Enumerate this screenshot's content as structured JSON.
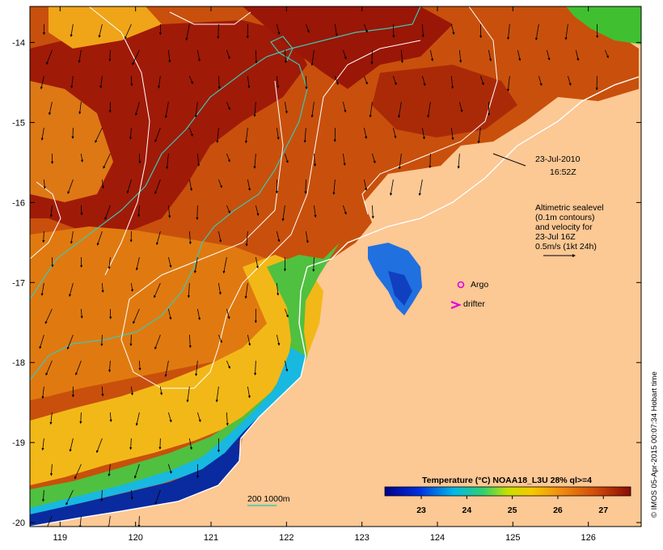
{
  "map": {
    "date": "23-Jul-2010",
    "time": "16:52Z",
    "altimetry_lines": [
      "Altimetric sealevel",
      "(0.1m contours)",
      "and velocity for",
      "23-Jul 16Z",
      "0.5m/s (1kt 24h)"
    ],
    "legend_argo": "Argo",
    "legend_drifter": "drifter",
    "depth_legend": "200  1000m",
    "credit": "© IMOS 05-Apr-2015 00:07:34 Hobart time",
    "colorbar": {
      "title": "Temperature (°C) NOAA18_L3U 28% ql>=4",
      "ticks": [
        "23",
        "24",
        "25",
        "26",
        "27"
      ],
      "min": 22.2,
      "max": 27.6
    },
    "lon_ticks": [
      "119",
      "120",
      "121",
      "122",
      "123",
      "124",
      "125",
      "126"
    ],
    "lat_ticks": [
      "-14",
      "-15",
      "-16",
      "-17",
      "-18",
      "-19",
      "-20"
    ],
    "colors": {
      "land": "#fcc894",
      "warm": "#a51a08",
      "mid": "#e07a10",
      "cool": "#f3c000",
      "green": "#48c238",
      "cold": "#082a9a",
      "contour": "#ffffff",
      "isobath": "#3ec6b4",
      "argo": "#e000e0"
    }
  }
}
